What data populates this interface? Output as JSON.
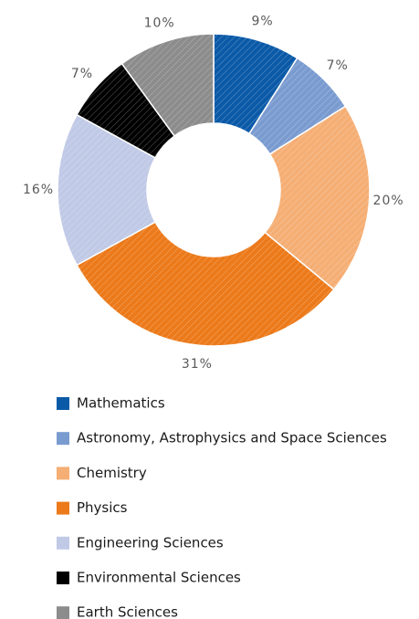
{
  "chart_data": {
    "type": "donut",
    "categories": [
      "Mathematics",
      "Astronomy, Astrophysics and Space Sciences",
      "Chemistry",
      "Physics",
      "Engineering Sciences",
      "Environmental Sciences",
      "Earth Sciences"
    ],
    "values": [
      9,
      7,
      20,
      31,
      16,
      7,
      10
    ],
    "value_labels": [
      "9%",
      "7%",
      "20%",
      "31%",
      "16%",
      "7%",
      "10%"
    ],
    "colors": [
      "#0b5aa8",
      "#7a9bd0",
      "#f5ae74",
      "#ec7a1a",
      "#c0c9e6",
      "#000000",
      "#8c8c8c"
    ],
    "legend": "bottom"
  }
}
